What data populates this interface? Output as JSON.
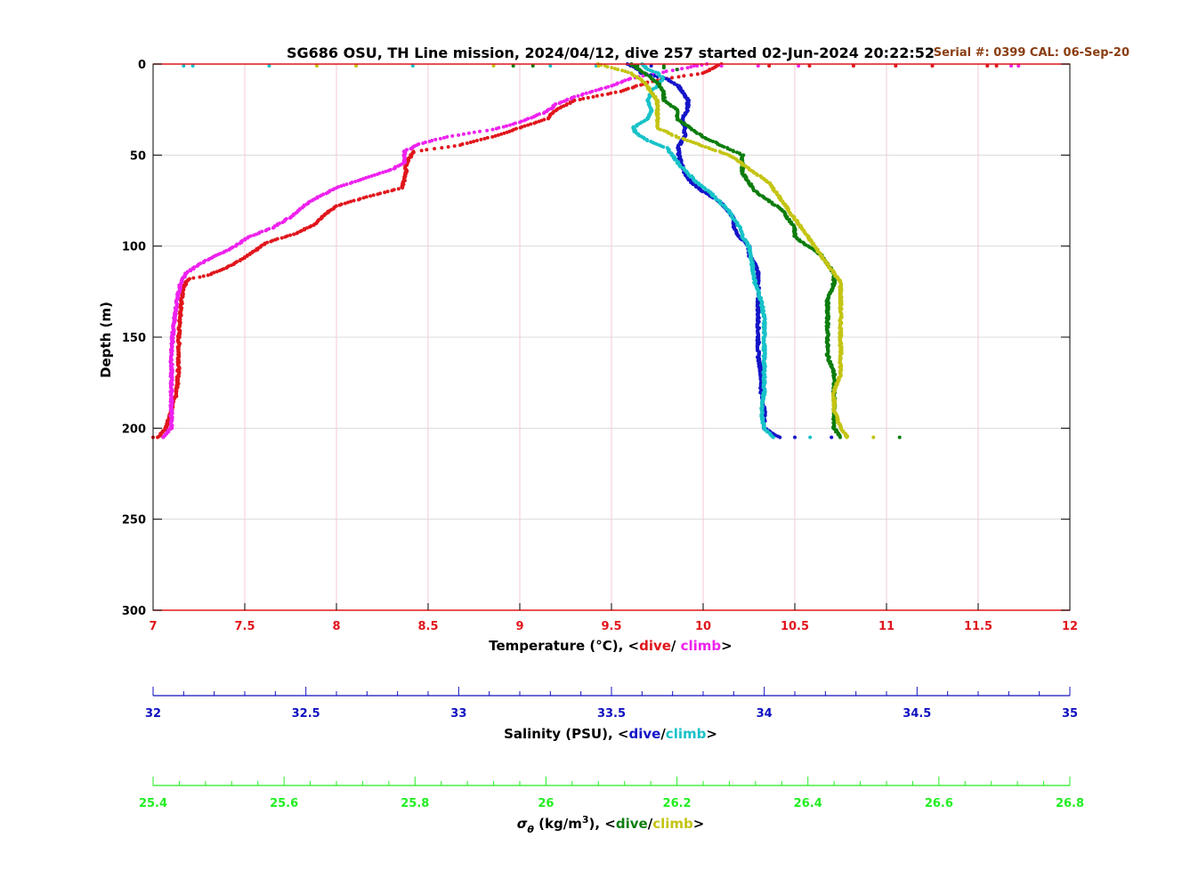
{
  "chart_data": {
    "type": "scatter",
    "title": "SG686 OSU, TH Line mission, 2024/04/12, dive 257 started 02-Jun-2024 20:22:52",
    "serial_text": "Serial #: 0399  CAL: 06-Sep-20",
    "y_axis": {
      "label": "Depth (m)",
      "range": [
        0,
        300
      ],
      "ticks": [
        0,
        50,
        100,
        150,
        200,
        250,
        300
      ],
      "reversed": true
    },
    "x_axes": [
      {
        "id": "temperature",
        "label_prefix": "Temperature (°C), <",
        "label_dive": "dive",
        "label_sep": "/ ",
        "label_climb": "climb",
        "label_suffix": ">",
        "range": [
          7,
          12
        ],
        "ticks": [
          "7",
          "7.5",
          "8",
          "8.5",
          "9",
          "9.5",
          "10",
          "10.5",
          "11",
          "11.5",
          "12"
        ],
        "color": "#e0161c",
        "grid": true
      },
      {
        "id": "salinity",
        "label_prefix": "Salinity (PSU), <",
        "label_dive": "dive",
        "label_sep": "/",
        "label_climb": "climb",
        "label_suffix": ">",
        "range": [
          32,
          35
        ],
        "ticks": [
          "32",
          "32.5",
          "33",
          "33.5",
          "34",
          "34.5",
          "35"
        ],
        "color": "#1010c0"
      },
      {
        "id": "density",
        "label_prefix": "σ",
        "label_sub": "θ",
        "label_mid": " (kg/m",
        "label_sup": "3",
        "label_mid2": "), <",
        "label_dive": "dive",
        "label_sep": "/",
        "label_climb": "climb",
        "label_suffix": ">",
        "range": [
          25.4,
          26.8
        ],
        "ticks": [
          "25.4",
          "25.6",
          "25.8",
          "26",
          "26.2",
          "26.4",
          "26.6",
          "26.8"
        ],
        "color": "#22ee22"
      }
    ],
    "series": [
      {
        "axis": "temperature",
        "phase": "dive",
        "color": "#e0161c",
        "profile": [
          [
            0,
            10.1
          ],
          [
            5,
            10.0
          ],
          [
            8,
            9.8
          ],
          [
            10,
            9.7
          ],
          [
            15,
            9.55
          ],
          [
            20,
            9.3
          ],
          [
            25,
            9.2
          ],
          [
            30,
            9.15
          ],
          [
            35,
            9.0
          ],
          [
            40,
            8.85
          ],
          [
            45,
            8.65
          ],
          [
            48,
            8.42
          ],
          [
            55,
            8.38
          ],
          [
            60,
            8.38
          ],
          [
            68,
            8.36
          ],
          [
            72,
            8.2
          ],
          [
            78,
            8.0
          ],
          [
            83,
            7.93
          ],
          [
            88,
            7.88
          ],
          [
            93,
            7.78
          ],
          [
            98,
            7.62
          ],
          [
            103,
            7.55
          ],
          [
            108,
            7.47
          ],
          [
            112,
            7.4
          ],
          [
            116,
            7.3
          ],
          [
            118,
            7.2
          ],
          [
            120,
            7.18
          ],
          [
            125,
            7.16
          ],
          [
            135,
            7.15
          ],
          [
            150,
            7.14
          ],
          [
            165,
            7.14
          ],
          [
            180,
            7.13
          ],
          [
            190,
            7.1
          ],
          [
            200,
            7.07
          ],
          [
            205,
            7.03
          ]
        ],
        "surface": [
          [
            1,
            10.36
          ],
          [
            1,
            10.58
          ],
          [
            1,
            10.82
          ],
          [
            1,
            11.05
          ],
          [
            1,
            11.25
          ],
          [
            1,
            11.55
          ],
          [
            1,
            11.6
          ],
          [
            205,
            7.0
          ]
        ]
      },
      {
        "axis": "temperature",
        "phase": "climb",
        "color": "#ee22ee",
        "profile": [
          [
            0,
            10.02
          ],
          [
            5,
            9.75
          ],
          [
            8,
            9.6
          ],
          [
            12,
            9.5
          ],
          [
            18,
            9.3
          ],
          [
            22,
            9.2
          ],
          [
            26,
            9.15
          ],
          [
            28,
            9.1
          ],
          [
            32,
            9.0
          ],
          [
            36,
            8.85
          ],
          [
            40,
            8.6
          ],
          [
            44,
            8.45
          ],
          [
            48,
            8.37
          ],
          [
            54,
            8.37
          ],
          [
            58,
            8.3
          ],
          [
            63,
            8.15
          ],
          [
            68,
            8.0
          ],
          [
            73,
            7.9
          ],
          [
            78,
            7.82
          ],
          [
            84,
            7.75
          ],
          [
            90,
            7.65
          ],
          [
            95,
            7.52
          ],
          [
            100,
            7.45
          ],
          [
            106,
            7.33
          ],
          [
            110,
            7.25
          ],
          [
            115,
            7.18
          ],
          [
            120,
            7.15
          ],
          [
            130,
            7.13
          ],
          [
            145,
            7.11
          ],
          [
            160,
            7.1
          ],
          [
            175,
            7.1
          ],
          [
            190,
            7.1
          ],
          [
            200,
            7.1
          ],
          [
            205,
            7.05
          ]
        ],
        "surface": [
          [
            1,
            9.95
          ],
          [
            1,
            10.1
          ],
          [
            1,
            10.3
          ],
          [
            1,
            10.52
          ],
          [
            1,
            11.72
          ],
          [
            1,
            11.68
          ]
        ]
      },
      {
        "axis": "salinity",
        "phase": "dive",
        "color": "#1414c8",
        "profile": [
          [
            0,
            33.55
          ],
          [
            2,
            33.58
          ],
          [
            5,
            33.6
          ],
          [
            8,
            33.68
          ],
          [
            12,
            33.72
          ],
          [
            15,
            33.73
          ],
          [
            20,
            33.75
          ],
          [
            25,
            33.75
          ],
          [
            30,
            33.73
          ],
          [
            35,
            33.74
          ],
          [
            40,
            33.74
          ],
          [
            45,
            33.72
          ],
          [
            50,
            33.72
          ],
          [
            55,
            33.73
          ],
          [
            60,
            33.74
          ],
          [
            65,
            33.76
          ],
          [
            70,
            33.8
          ],
          [
            75,
            33.85
          ],
          [
            80,
            33.88
          ],
          [
            85,
            33.9
          ],
          [
            90,
            33.9
          ],
          [
            95,
            33.92
          ],
          [
            100,
            33.95
          ],
          [
            105,
            33.95
          ],
          [
            110,
            33.97
          ],
          [
            115,
            33.98
          ],
          [
            120,
            33.98
          ],
          [
            130,
            33.98
          ],
          [
            140,
            33.98
          ],
          [
            150,
            33.98
          ],
          [
            160,
            33.98
          ],
          [
            170,
            33.99
          ],
          [
            180,
            33.99
          ],
          [
            190,
            34.0
          ],
          [
            200,
            34.0
          ],
          [
            205,
            34.05
          ]
        ],
        "surface": [
          [
            1,
            33.58
          ],
          [
            1,
            33.63
          ],
          [
            205,
            34.1
          ],
          [
            205,
            34.22
          ]
        ]
      },
      {
        "axis": "salinity",
        "phase": "climb",
        "color": "#18c2c8",
        "profile": [
          [
            0,
            33.6
          ],
          [
            3,
            33.62
          ],
          [
            5,
            33.65
          ],
          [
            8,
            33.67
          ],
          [
            12,
            33.65
          ],
          [
            15,
            33.63
          ],
          [
            20,
            33.62
          ],
          [
            25,
            33.63
          ],
          [
            30,
            33.62
          ],
          [
            35,
            33.57
          ],
          [
            38,
            33.58
          ],
          [
            42,
            33.62
          ],
          [
            46,
            33.68
          ],
          [
            50,
            33.7
          ],
          [
            55,
            33.72
          ],
          [
            60,
            33.75
          ],
          [
            65,
            33.78
          ],
          [
            70,
            33.82
          ],
          [
            75,
            33.85
          ],
          [
            80,
            33.88
          ],
          [
            85,
            33.9
          ],
          [
            90,
            33.92
          ],
          [
            95,
            33.93
          ],
          [
            100,
            33.95
          ],
          [
            110,
            33.96
          ],
          [
            120,
            33.97
          ],
          [
            130,
            33.99
          ],
          [
            140,
            34.0
          ],
          [
            150,
            34.0
          ],
          [
            160,
            34.0
          ],
          [
            170,
            34.0
          ],
          [
            180,
            34.0
          ],
          [
            190,
            33.99
          ],
          [
            200,
            34.0
          ],
          [
            205,
            34.03
          ]
        ],
        "surface": [
          [
            1,
            32.1
          ],
          [
            1,
            32.13
          ],
          [
            1,
            32.38
          ],
          [
            1,
            32.85
          ],
          [
            1,
            33.3
          ],
          [
            1,
            33.45
          ],
          [
            205,
            34.15
          ]
        ]
      },
      {
        "axis": "density",
        "phase": "dive",
        "color": "#0d7d0d",
        "profile": [
          [
            0,
            26.13
          ],
          [
            5,
            26.15
          ],
          [
            10,
            26.17
          ],
          [
            15,
            26.18
          ],
          [
            20,
            26.18
          ],
          [
            25,
            26.2
          ],
          [
            30,
            26.2
          ],
          [
            35,
            26.22
          ],
          [
            40,
            26.24
          ],
          [
            45,
            26.27
          ],
          [
            50,
            26.3
          ],
          [
            55,
            26.3
          ],
          [
            60,
            26.3
          ],
          [
            65,
            26.31
          ],
          [
            70,
            26.32
          ],
          [
            75,
            26.34
          ],
          [
            80,
            26.36
          ],
          [
            85,
            26.37
          ],
          [
            90,
            26.38
          ],
          [
            95,
            26.38
          ],
          [
            100,
            26.4
          ],
          [
            105,
            26.42
          ],
          [
            110,
            26.43
          ],
          [
            115,
            26.44
          ],
          [
            120,
            26.44
          ],
          [
            130,
            26.43
          ],
          [
            140,
            26.43
          ],
          [
            150,
            26.43
          ],
          [
            160,
            26.43
          ],
          [
            170,
            26.44
          ],
          [
            180,
            26.44
          ],
          [
            190,
            26.44
          ],
          [
            200,
            26.44
          ],
          [
            205,
            26.45
          ]
        ],
        "surface": [
          [
            1,
            25.95
          ],
          [
            1,
            25.98
          ],
          [
            1,
            26.14
          ],
          [
            1,
            26.18
          ],
          [
            2,
            26.18
          ],
          [
            3,
            26.2
          ],
          [
            205,
            26.54
          ]
        ]
      },
      {
        "axis": "density",
        "phase": "climb",
        "color": "#c4c414",
        "profile": [
          [
            0,
            26.08
          ],
          [
            5,
            26.13
          ],
          [
            10,
            26.15
          ],
          [
            15,
            26.16
          ],
          [
            20,
            26.17
          ],
          [
            25,
            26.17
          ],
          [
            30,
            26.17
          ],
          [
            35,
            26.17
          ],
          [
            40,
            26.2
          ],
          [
            45,
            26.24
          ],
          [
            50,
            26.28
          ],
          [
            55,
            26.3
          ],
          [
            60,
            26.32
          ],
          [
            65,
            26.34
          ],
          [
            70,
            26.35
          ],
          [
            75,
            26.36
          ],
          [
            80,
            26.37
          ],
          [
            85,
            26.38
          ],
          [
            90,
            26.39
          ],
          [
            95,
            26.4
          ],
          [
            100,
            26.41
          ],
          [
            105,
            26.42
          ],
          [
            110,
            26.43
          ],
          [
            115,
            26.44
          ],
          [
            120,
            26.45
          ],
          [
            130,
            26.45
          ],
          [
            140,
            26.45
          ],
          [
            150,
            26.45
          ],
          [
            160,
            26.45
          ],
          [
            170,
            26.45
          ],
          [
            180,
            26.44
          ],
          [
            190,
            26.44
          ],
          [
            200,
            26.45
          ],
          [
            205,
            26.46
          ]
        ],
        "surface": [
          [
            1,
            25.65
          ],
          [
            1,
            25.71
          ],
          [
            1,
            25.92
          ],
          [
            1,
            26.08
          ],
          [
            205,
            26.5
          ]
        ]
      }
    ]
  }
}
